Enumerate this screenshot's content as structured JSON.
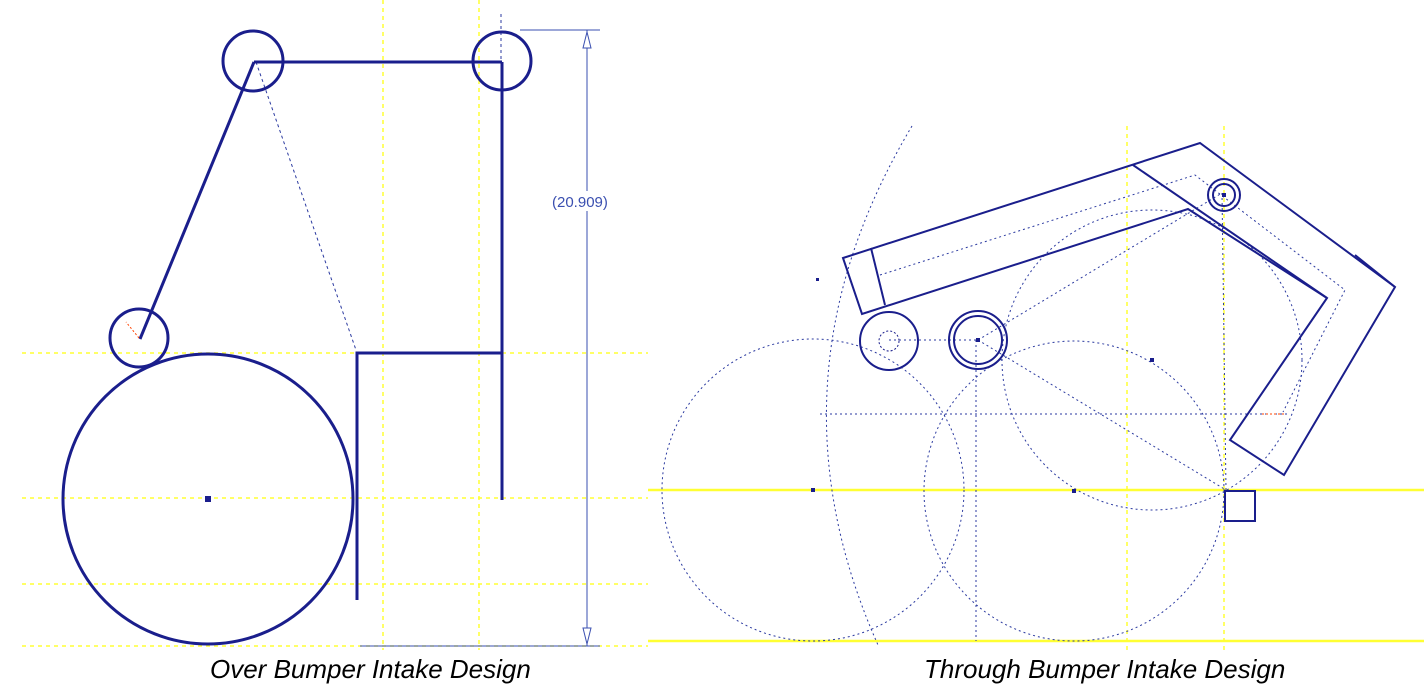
{
  "colors": {
    "geometry": "#1a1e8c",
    "construction": "#2b3aa0",
    "reference": "#ffff33",
    "dimension": "#3a4fb0",
    "accent": "#ff4400"
  },
  "left_panel": {
    "caption": "Over Bumper Intake Design",
    "dimension_label": "(20.909)"
  },
  "right_panel": {
    "caption": "Through Bumper Intake Design"
  }
}
